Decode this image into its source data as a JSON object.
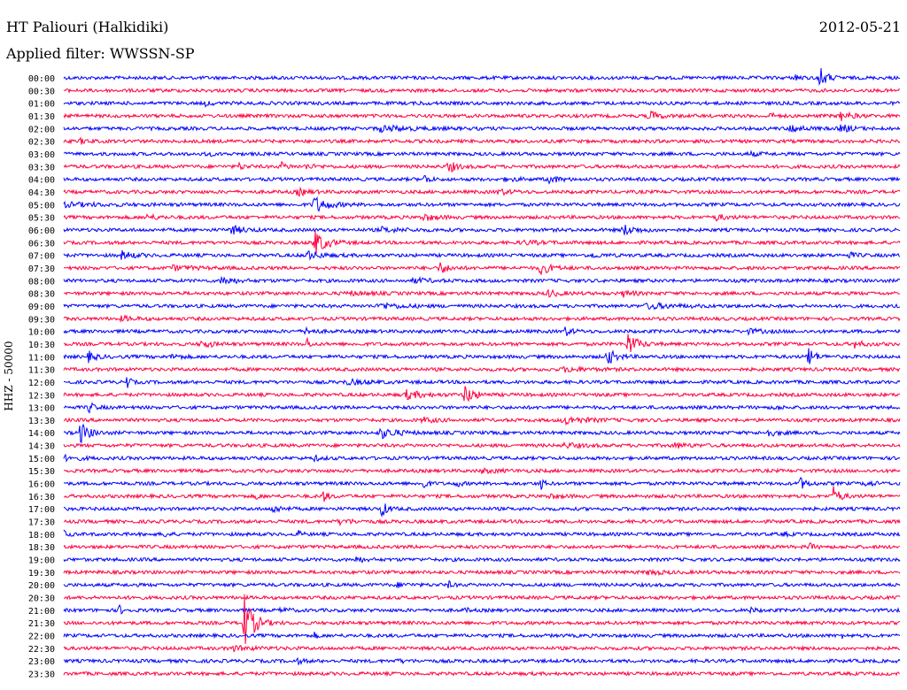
{
  "header": {
    "station": "HT Paliouri (Halkidiki)",
    "date": "2012-05-21",
    "filter": "Applied filter: WWSSN-SP"
  },
  "colors": {
    "even_trace": "#0000ff",
    "odd_trace": "#ff0040",
    "text": "#000000"
  },
  "chart_data": {
    "type": "line",
    "ylabel": "HHZ - 50000",
    "rows": [
      {
        "time": "00:00",
        "events": [
          [
            0.875,
            1.0,
            3
          ],
          [
            0.903,
            2.5,
            6
          ]
        ]
      },
      {
        "time": "00:30",
        "events": []
      },
      {
        "time": "01:00",
        "events": [
          [
            0.17,
            0.5,
            4
          ],
          [
            0.425,
            0.2,
            4
          ]
        ]
      },
      {
        "time": "01:30",
        "events": [
          [
            0.7,
            1.0,
            8
          ],
          [
            0.845,
            0.5,
            4
          ],
          [
            0.93,
            0.8,
            10
          ]
        ]
      },
      {
        "time": "02:00",
        "events": [
          [
            0.38,
            0.5,
            30
          ],
          [
            0.87,
            0.8,
            10
          ],
          [
            0.93,
            0.7,
            10
          ]
        ]
      },
      {
        "time": "02:30",
        "events": [
          [
            0.02,
            0.5,
            6
          ],
          [
            0.08,
            0.2,
            4
          ]
        ]
      },
      {
        "time": "03:00",
        "events": [
          [
            0.17,
            0.5,
            4
          ],
          [
            0.82,
            0.3,
            10
          ]
        ]
      },
      {
        "time": "03:30",
        "events": [
          [
            0.21,
            0.6,
            4
          ],
          [
            0.26,
            0.7,
            6
          ],
          [
            0.29,
            0.4,
            8
          ],
          [
            0.46,
            1.3,
            6
          ]
        ]
      },
      {
        "time": "04:00",
        "events": [
          [
            0.432,
            1.2,
            3
          ],
          [
            0.58,
            0.8,
            8
          ],
          [
            0.53,
            0.3,
            12
          ]
        ]
      },
      {
        "time": "04:30",
        "events": [
          [
            0.28,
            0.6,
            10
          ],
          [
            0.52,
            0.5,
            10
          ]
        ]
      },
      {
        "time": "05:00",
        "events": [
          [
            0.3,
            1.6,
            12
          ],
          [
            0.0,
            0.3,
            40
          ]
        ]
      },
      {
        "time": "05:30",
        "events": [
          [
            0.1,
            0.4,
            12
          ],
          [
            0.43,
            0.6,
            12
          ],
          [
            0.78,
            0.5,
            10
          ]
        ]
      },
      {
        "time": "06:00",
        "events": [
          [
            0.2,
            0.8,
            12
          ],
          [
            0.67,
            1.0,
            12
          ],
          [
            0.38,
            0.4,
            20
          ]
        ]
      },
      {
        "time": "06:30",
        "events": [
          [
            0.3,
            2.6,
            10
          ],
          [
            0.55,
            0.3,
            20
          ]
        ]
      },
      {
        "time": "07:00",
        "events": [
          [
            0.07,
            0.8,
            10
          ],
          [
            0.29,
            0.8,
            14
          ],
          [
            0.63,
            0.4,
            10
          ],
          [
            0.94,
            0.5,
            6
          ]
        ]
      },
      {
        "time": "07:30",
        "events": [
          [
            0.45,
            1.1,
            8
          ],
          [
            0.57,
            1.2,
            10
          ],
          [
            0.13,
            0.4,
            20
          ]
        ]
      },
      {
        "time": "08:00",
        "events": [
          [
            0.19,
            0.9,
            10
          ],
          [
            0.42,
            0.4,
            15
          ]
        ]
      },
      {
        "time": "08:30",
        "events": [
          [
            0.58,
            0.6,
            10
          ],
          [
            0.67,
            0.6,
            8
          ],
          [
            0.34,
            0.3,
            20
          ]
        ]
      },
      {
        "time": "09:00",
        "events": [
          [
            0.38,
            0.5,
            20
          ],
          [
            0.7,
            0.5,
            25
          ]
        ]
      },
      {
        "time": "09:30",
        "events": [
          [
            0.07,
            0.4,
            12
          ]
        ]
      },
      {
        "time": "10:00",
        "events": [
          [
            0.29,
            0.8,
            6
          ],
          [
            0.6,
            0.8,
            6
          ],
          [
            0.82,
            0.4,
            12
          ]
        ]
      },
      {
        "time": "10:30",
        "events": [
          [
            0.165,
            0.7,
            10
          ],
          [
            0.29,
            1.6,
            2
          ],
          [
            0.675,
            2.3,
            8
          ],
          [
            0.945,
            0.7,
            8
          ]
        ]
      },
      {
        "time": "11:00",
        "events": [
          [
            0.03,
            1.0,
            6
          ],
          [
            0.13,
            0.5,
            8
          ],
          [
            0.65,
            1.6,
            8
          ],
          [
            0.89,
            2.3,
            5
          ]
        ]
      },
      {
        "time": "11:30",
        "events": [
          [
            0.6,
            0.4,
            20
          ]
        ]
      },
      {
        "time": "12:00",
        "events": [
          [
            0.075,
            2.0,
            2
          ],
          [
            0.34,
            0.4,
            20
          ]
        ]
      },
      {
        "time": "12:30",
        "events": [
          [
            0.41,
            0.8,
            15
          ],
          [
            0.48,
            1.9,
            8
          ]
        ]
      },
      {
        "time": "13:00",
        "events": [
          [
            0.03,
            1.0,
            5
          ],
          [
            0.85,
            0.3,
            6
          ]
        ]
      },
      {
        "time": "13:30",
        "events": [
          [
            0.43,
            0.5,
            10
          ],
          [
            0.6,
            0.7,
            20
          ]
        ]
      },
      {
        "time": "14:00",
        "events": [
          [
            0.02,
            2.0,
            8
          ],
          [
            0.38,
            1.0,
            15
          ],
          [
            0.84,
            0.8,
            8
          ]
        ]
      },
      {
        "time": "14:30",
        "events": [
          [
            0.6,
            0.4,
            15
          ],
          [
            0.73,
            0.4,
            15
          ]
        ]
      },
      {
        "time": "15:00",
        "events": [
          [
            0.0,
            0.4,
            15
          ],
          [
            0.3,
            0.4,
            6
          ]
        ]
      },
      {
        "time": "15:30",
        "events": [
          [
            0.5,
            0.3,
            20
          ]
        ]
      },
      {
        "time": "16:00",
        "events": [
          [
            0.43,
            1.2,
            3
          ],
          [
            0.47,
            0.7,
            3
          ],
          [
            0.57,
            1.5,
            2
          ],
          [
            0.88,
            1.2,
            6
          ],
          [
            0.96,
            0.6,
            6
          ]
        ]
      },
      {
        "time": "16:30",
        "events": [
          [
            0.23,
            0.6,
            3
          ],
          [
            0.31,
            1.2,
            4
          ],
          [
            0.58,
            0.4,
            10
          ],
          [
            0.92,
            1.9,
            6
          ]
        ]
      },
      {
        "time": "17:00",
        "events": [
          [
            0.25,
            0.7,
            8
          ],
          [
            0.38,
            1.6,
            5
          ]
        ]
      },
      {
        "time": "17:30",
        "events": [
          [
            0.33,
            0.4,
            15
          ]
        ]
      },
      {
        "time": "18:00",
        "events": [
          [
            0.0,
            0.7,
            3
          ],
          [
            0.12,
            0.6,
            3
          ],
          [
            0.28,
            0.6,
            3
          ],
          [
            0.86,
            0.3,
            6
          ]
        ]
      },
      {
        "time": "18:30",
        "events": [
          [
            0.89,
            0.9,
            4
          ]
        ]
      },
      {
        "time": "19:00",
        "events": [
          [
            0.35,
            0.6,
            6
          ]
        ]
      },
      {
        "time": "19:30",
        "events": [
          [
            0.7,
            0.5,
            10
          ]
        ]
      },
      {
        "time": "20:00",
        "events": [
          [
            0.46,
            0.6,
            3
          ],
          [
            0.4,
            0.3,
            10
          ]
        ]
      },
      {
        "time": "20:30",
        "events": [
          [
            0.08,
            0.5,
            2
          ]
        ]
      },
      {
        "time": "21:00",
        "events": [
          [
            0.065,
            1.2,
            3
          ],
          [
            0.26,
            0.5,
            6
          ],
          [
            0.48,
            0.4,
            3
          ],
          [
            0.82,
            0.4,
            6
          ]
        ]
      },
      {
        "time": "21:30",
        "events": [
          [
            0.215,
            6.5,
            8
          ]
        ]
      },
      {
        "time": "22:00",
        "events": [
          [
            0.3,
            0.5,
            3
          ],
          [
            0.93,
            0.4,
            3
          ]
        ]
      },
      {
        "time": "22:30",
        "events": [
          [
            0.2,
            0.4,
            20
          ]
        ]
      },
      {
        "time": "23:00",
        "events": [
          [
            0.28,
            0.4,
            6
          ],
          [
            0.4,
            0.3,
            6
          ]
        ]
      },
      {
        "time": "23:30",
        "events": []
      }
    ]
  }
}
